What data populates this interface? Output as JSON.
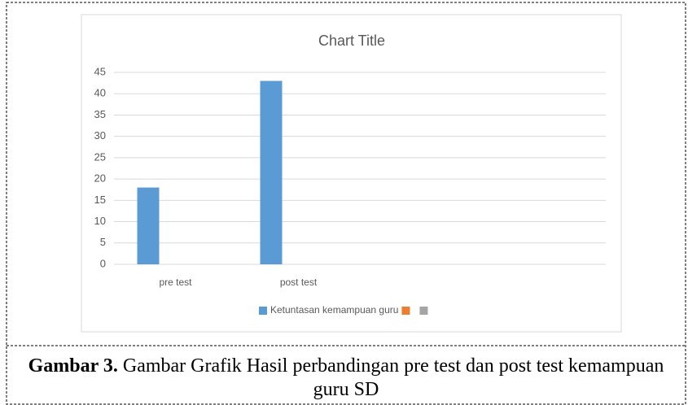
{
  "chart_data": {
    "type": "bar",
    "title": "Chart Title",
    "categories": [
      "pre test",
      "post test",
      null,
      null
    ],
    "series": [
      {
        "name": "Ketuntasan kemampuan guru",
        "color": "#5b9bd5",
        "values": [
          18,
          43,
          null,
          null
        ]
      },
      {
        "name": null,
        "color": "#ed7d31",
        "values": [
          null,
          null,
          null,
          null
        ]
      },
      {
        "name": null,
        "color": "#a5a5a5",
        "values": [
          null,
          null,
          null,
          null
        ]
      }
    ],
    "ylim": [
      0,
      45
    ],
    "yticks": [
      0,
      5,
      10,
      15,
      20,
      25,
      30,
      35,
      40,
      45
    ],
    "grid": true,
    "legend": "bottom"
  },
  "caption": {
    "label": "Gambar 3.",
    "text": "Gambar Grafik Hasil perbandingan pre test dan post test kemampuan guru SD"
  }
}
